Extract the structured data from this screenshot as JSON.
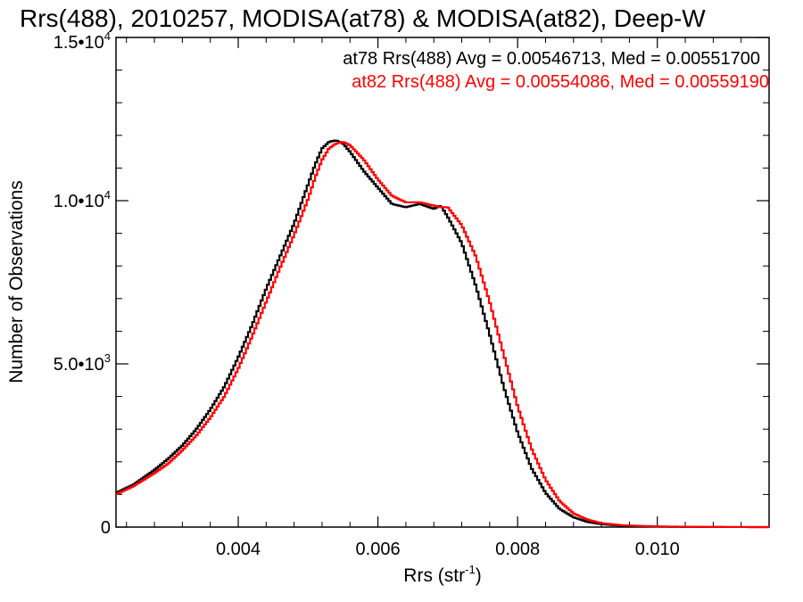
{
  "chart_data": {
    "type": "line",
    "title": "Rrs(488), 2010257, MODISA(at78) & MODISA(at82), Deep-W",
    "xlabel": "Rrs (str",
    "xlabel_sup": "-1",
    "xlabel_close": ")",
    "ylabel": "Number of Observations",
    "xlim": [
      0.00225,
      0.0116
    ],
    "ylim": [
      0,
      15000
    ],
    "x_ticks": [
      {
        "value": 0.004,
        "label": "0.004"
      },
      {
        "value": 0.006,
        "label": "0.006"
      },
      {
        "value": 0.008,
        "label": "0.008"
      },
      {
        "value": 0.01,
        "label": "0.010"
      }
    ],
    "y_ticks": [
      {
        "value": 0,
        "mant": "0",
        "exp": ""
      },
      {
        "value": 5000,
        "mant": "5.0•10",
        "exp": "3"
      },
      {
        "value": 10000,
        "mant": "1.0•10",
        "exp": "4"
      },
      {
        "value": 15000,
        "mant": "1.5•10",
        "exp": "4"
      }
    ],
    "legend": [
      "at78 Rrs(488) Avg = 0.00546713, Med = 0.00551700",
      "at82 Rrs(488) Avg = 0.00554086, Med = 0.00559190"
    ],
    "legend_placement": "top-right",
    "bin_width": 3e-05,
    "series": [
      {
        "name": "at78",
        "color": "#000000",
        "x": [
          0.00225,
          0.0025,
          0.0028,
          0.003,
          0.0032,
          0.0034,
          0.0036,
          0.0038,
          0.004,
          0.0042,
          0.0044,
          0.0046,
          0.0048,
          0.005,
          0.0051,
          0.0052,
          0.0053,
          0.0054,
          0.0055,
          0.0056,
          0.0058,
          0.006,
          0.0062,
          0.0064,
          0.0066,
          0.0068,
          0.0069,
          0.007,
          0.0072,
          0.0074,
          0.0076,
          0.0078,
          0.008,
          0.0082,
          0.0084,
          0.0086,
          0.0088,
          0.009,
          0.0092,
          0.0095,
          0.01,
          0.0105,
          0.011,
          0.0116
        ],
        "values": [
          1050,
          1300,
          1750,
          2100,
          2500,
          3000,
          3600,
          4300,
          5200,
          6200,
          7300,
          8300,
          9300,
          10500,
          11100,
          11600,
          11800,
          11850,
          11750,
          11500,
          10900,
          10400,
          9900,
          9800,
          9900,
          9750,
          9850,
          9500,
          8700,
          7400,
          5900,
          4300,
          2900,
          1800,
          1050,
          560,
          300,
          160,
          90,
          40,
          15,
          5,
          2,
          0
        ]
      },
      {
        "name": "at82",
        "color": "#ff0000",
        "x": [
          0.00225,
          0.0025,
          0.0028,
          0.003,
          0.0032,
          0.0034,
          0.0036,
          0.0038,
          0.004,
          0.0042,
          0.0044,
          0.0046,
          0.0048,
          0.005,
          0.0051,
          0.0052,
          0.0053,
          0.0054,
          0.0055,
          0.0056,
          0.0058,
          0.006,
          0.0062,
          0.0064,
          0.0066,
          0.0068,
          0.0069,
          0.007,
          0.0072,
          0.0074,
          0.0076,
          0.0078,
          0.008,
          0.0082,
          0.0084,
          0.0086,
          0.0088,
          0.009,
          0.0092,
          0.0095,
          0.01,
          0.0105,
          0.011,
          0.0116
        ],
        "values": [
          1000,
          1250,
          1650,
          1950,
          2350,
          2800,
          3350,
          4000,
          4850,
          5850,
          6900,
          7950,
          8950,
          10050,
          10700,
          11250,
          11600,
          11750,
          11800,
          11700,
          11250,
          10650,
          10150,
          9950,
          9950,
          9850,
          9800,
          9800,
          9250,
          8300,
          6900,
          5300,
          3700,
          2400,
          1450,
          800,
          420,
          230,
          120,
          55,
          20,
          7,
          2,
          0
        ]
      }
    ]
  }
}
